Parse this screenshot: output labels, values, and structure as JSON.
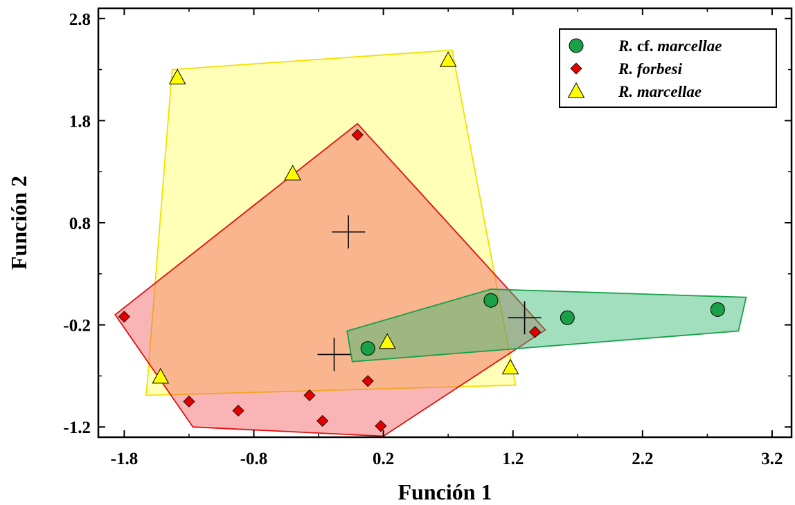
{
  "chart_data": {
    "type": "scatter",
    "xlabel": "Función 1",
    "ylabel": "Función 2",
    "xlim": [
      -2.0,
      3.35
    ],
    "ylim": [
      -1.3,
      2.9
    ],
    "xticks": [
      -1.8,
      -0.8,
      0.2,
      1.2,
      2.2,
      3.2
    ],
    "xtick_labels": [
      "-1.8",
      "-0.8",
      "0.2",
      "1.2",
      "2.2",
      "3.2"
    ],
    "yticks": [
      -1.2,
      -0.2,
      0.8,
      1.8,
      2.8
    ],
    "ytick_labels": [
      "-1.2",
      "-0.2",
      "0.8",
      "1.8",
      "2.8"
    ],
    "grid": false,
    "legend_position": "top-right",
    "series": [
      {
        "name": "R. cf. marcellae",
        "legend_parts": [
          "R.",
          "cf.",
          "marcellae"
        ],
        "marker": "circle",
        "color": "#1aa046",
        "hull_fill": "#2eb872",
        "hull_stroke": "#17a04a",
        "points": [
          [
            0.08,
            -0.43
          ],
          [
            1.03,
            0.04
          ],
          [
            1.62,
            -0.13
          ],
          [
            2.78,
            -0.05
          ]
        ],
        "hull": [
          [
            -0.08,
            -0.26
          ],
          [
            1.03,
            0.15
          ],
          [
            3.0,
            0.07
          ],
          [
            2.94,
            -0.26
          ],
          [
            -0.04,
            -0.56
          ]
        ],
        "centroid": [
          1.29,
          -0.13
        ]
      },
      {
        "name": "R. forbesi",
        "legend_parts": [
          "R.",
          "forbesi"
        ],
        "marker": "diamond",
        "color": "#e00000",
        "hull_fill": "#f25a5a",
        "hull_stroke": "#e01010",
        "points": [
          [
            -1.8,
            -0.12
          ],
          [
            -1.3,
            -0.95
          ],
          [
            -0.92,
            -1.04
          ],
          [
            -0.37,
            -0.89
          ],
          [
            -0.27,
            -1.14
          ],
          [
            0.0,
            1.66
          ],
          [
            0.08,
            -0.75
          ],
          [
            0.18,
            -1.19
          ],
          [
            1.37,
            -0.27
          ]
        ],
        "hull": [
          [
            -1.87,
            -0.1
          ],
          [
            0.0,
            1.77
          ],
          [
            1.45,
            -0.25
          ],
          [
            0.2,
            -1.29
          ],
          [
            -1.27,
            -1.2
          ]
        ],
        "centroid": [
          -0.18,
          -0.49
        ]
      },
      {
        "name": "R. marcellae",
        "legend_parts": [
          "R.",
          "marcellae"
        ],
        "marker": "triangle",
        "color": "#ffff00",
        "hull_fill": "#ffff60",
        "hull_stroke": "#f0e000",
        "points": [
          [
            -1.52,
            -0.71
          ],
          [
            -1.39,
            2.22
          ],
          [
            -0.5,
            1.28
          ],
          [
            0.23,
            -0.37
          ],
          [
            0.7,
            2.39
          ],
          [
            1.18,
            -0.62
          ]
        ],
        "hull": [
          [
            -1.43,
            2.3
          ],
          [
            0.73,
            2.49
          ],
          [
            1.22,
            -0.79
          ],
          [
            -1.63,
            -0.89
          ]
        ],
        "centroid": [
          -0.07,
          0.71
        ]
      }
    ]
  }
}
